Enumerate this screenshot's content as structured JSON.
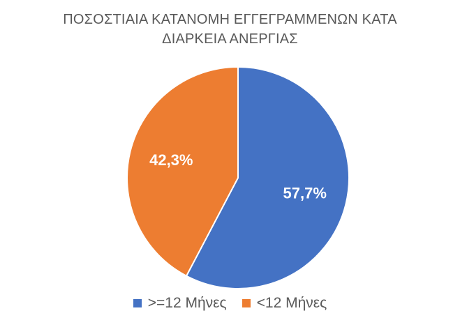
{
  "chart_data": {
    "type": "pie",
    "title_lines": [
      "ΠΟΣΟΣΤΙΑΙΑ ΚΑΤΑΝΟΜΗ ΕΓΓΕΓΡΑΜΜΕΝΩΝ ΚΑΤΑ",
      "ΔΙΑΡΚΕΙΑ ΑΝΕΡΓΙΑΣ"
    ],
    "slices": [
      {
        "label": ">=12 Μήνες",
        "value": 57.7,
        "display": "57,7%",
        "color": "#4472C4"
      },
      {
        "label": "<12 Μήνες",
        "value": 42.3,
        "display": "42,3%",
        "color": "#ED7D31"
      }
    ],
    "start_angle": "top (12 o'clock), clockwise",
    "legend_position": "bottom",
    "data_label_color": "#FFFFFF"
  }
}
